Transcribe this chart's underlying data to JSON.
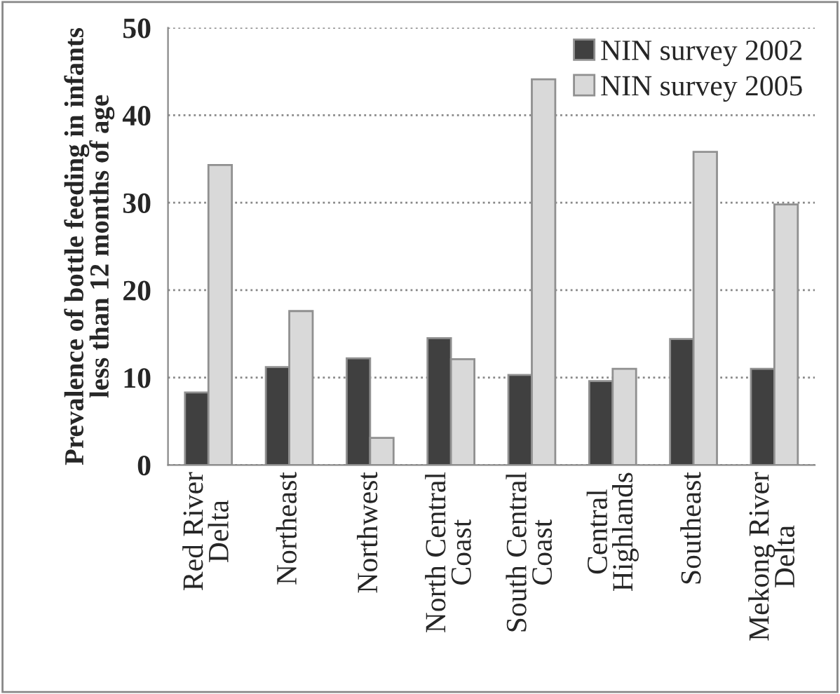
{
  "chart_data": {
    "type": "bar",
    "ylabel": "Prevalence of bottle feeding in infants\nless than 12 months of age",
    "categories": [
      "Red River\nDelta",
      "Northeast",
      "Northwest",
      "North Central\nCoast",
      "South Central\nCoast",
      "Central\nHighlands",
      "Southeast",
      "Mekong River\nDelta"
    ],
    "series": [
      {
        "name": "NIN survey 2002",
        "color": "#404040",
        "values": [
          8.3,
          11.2,
          12.2,
          14.5,
          10.3,
          9.6,
          14.4,
          11.0
        ]
      },
      {
        "name": "NIN survey 2005",
        "color": "#d9d9d9",
        "values": [
          34.3,
          17.6,
          3.1,
          12.1,
          44.1,
          11.0,
          35.8,
          29.8
        ]
      }
    ],
    "ylim": [
      0,
      50
    ],
    "yticks": [
      0,
      10,
      20,
      30,
      40,
      50
    ],
    "grid": "y",
    "legend": "top right"
  }
}
